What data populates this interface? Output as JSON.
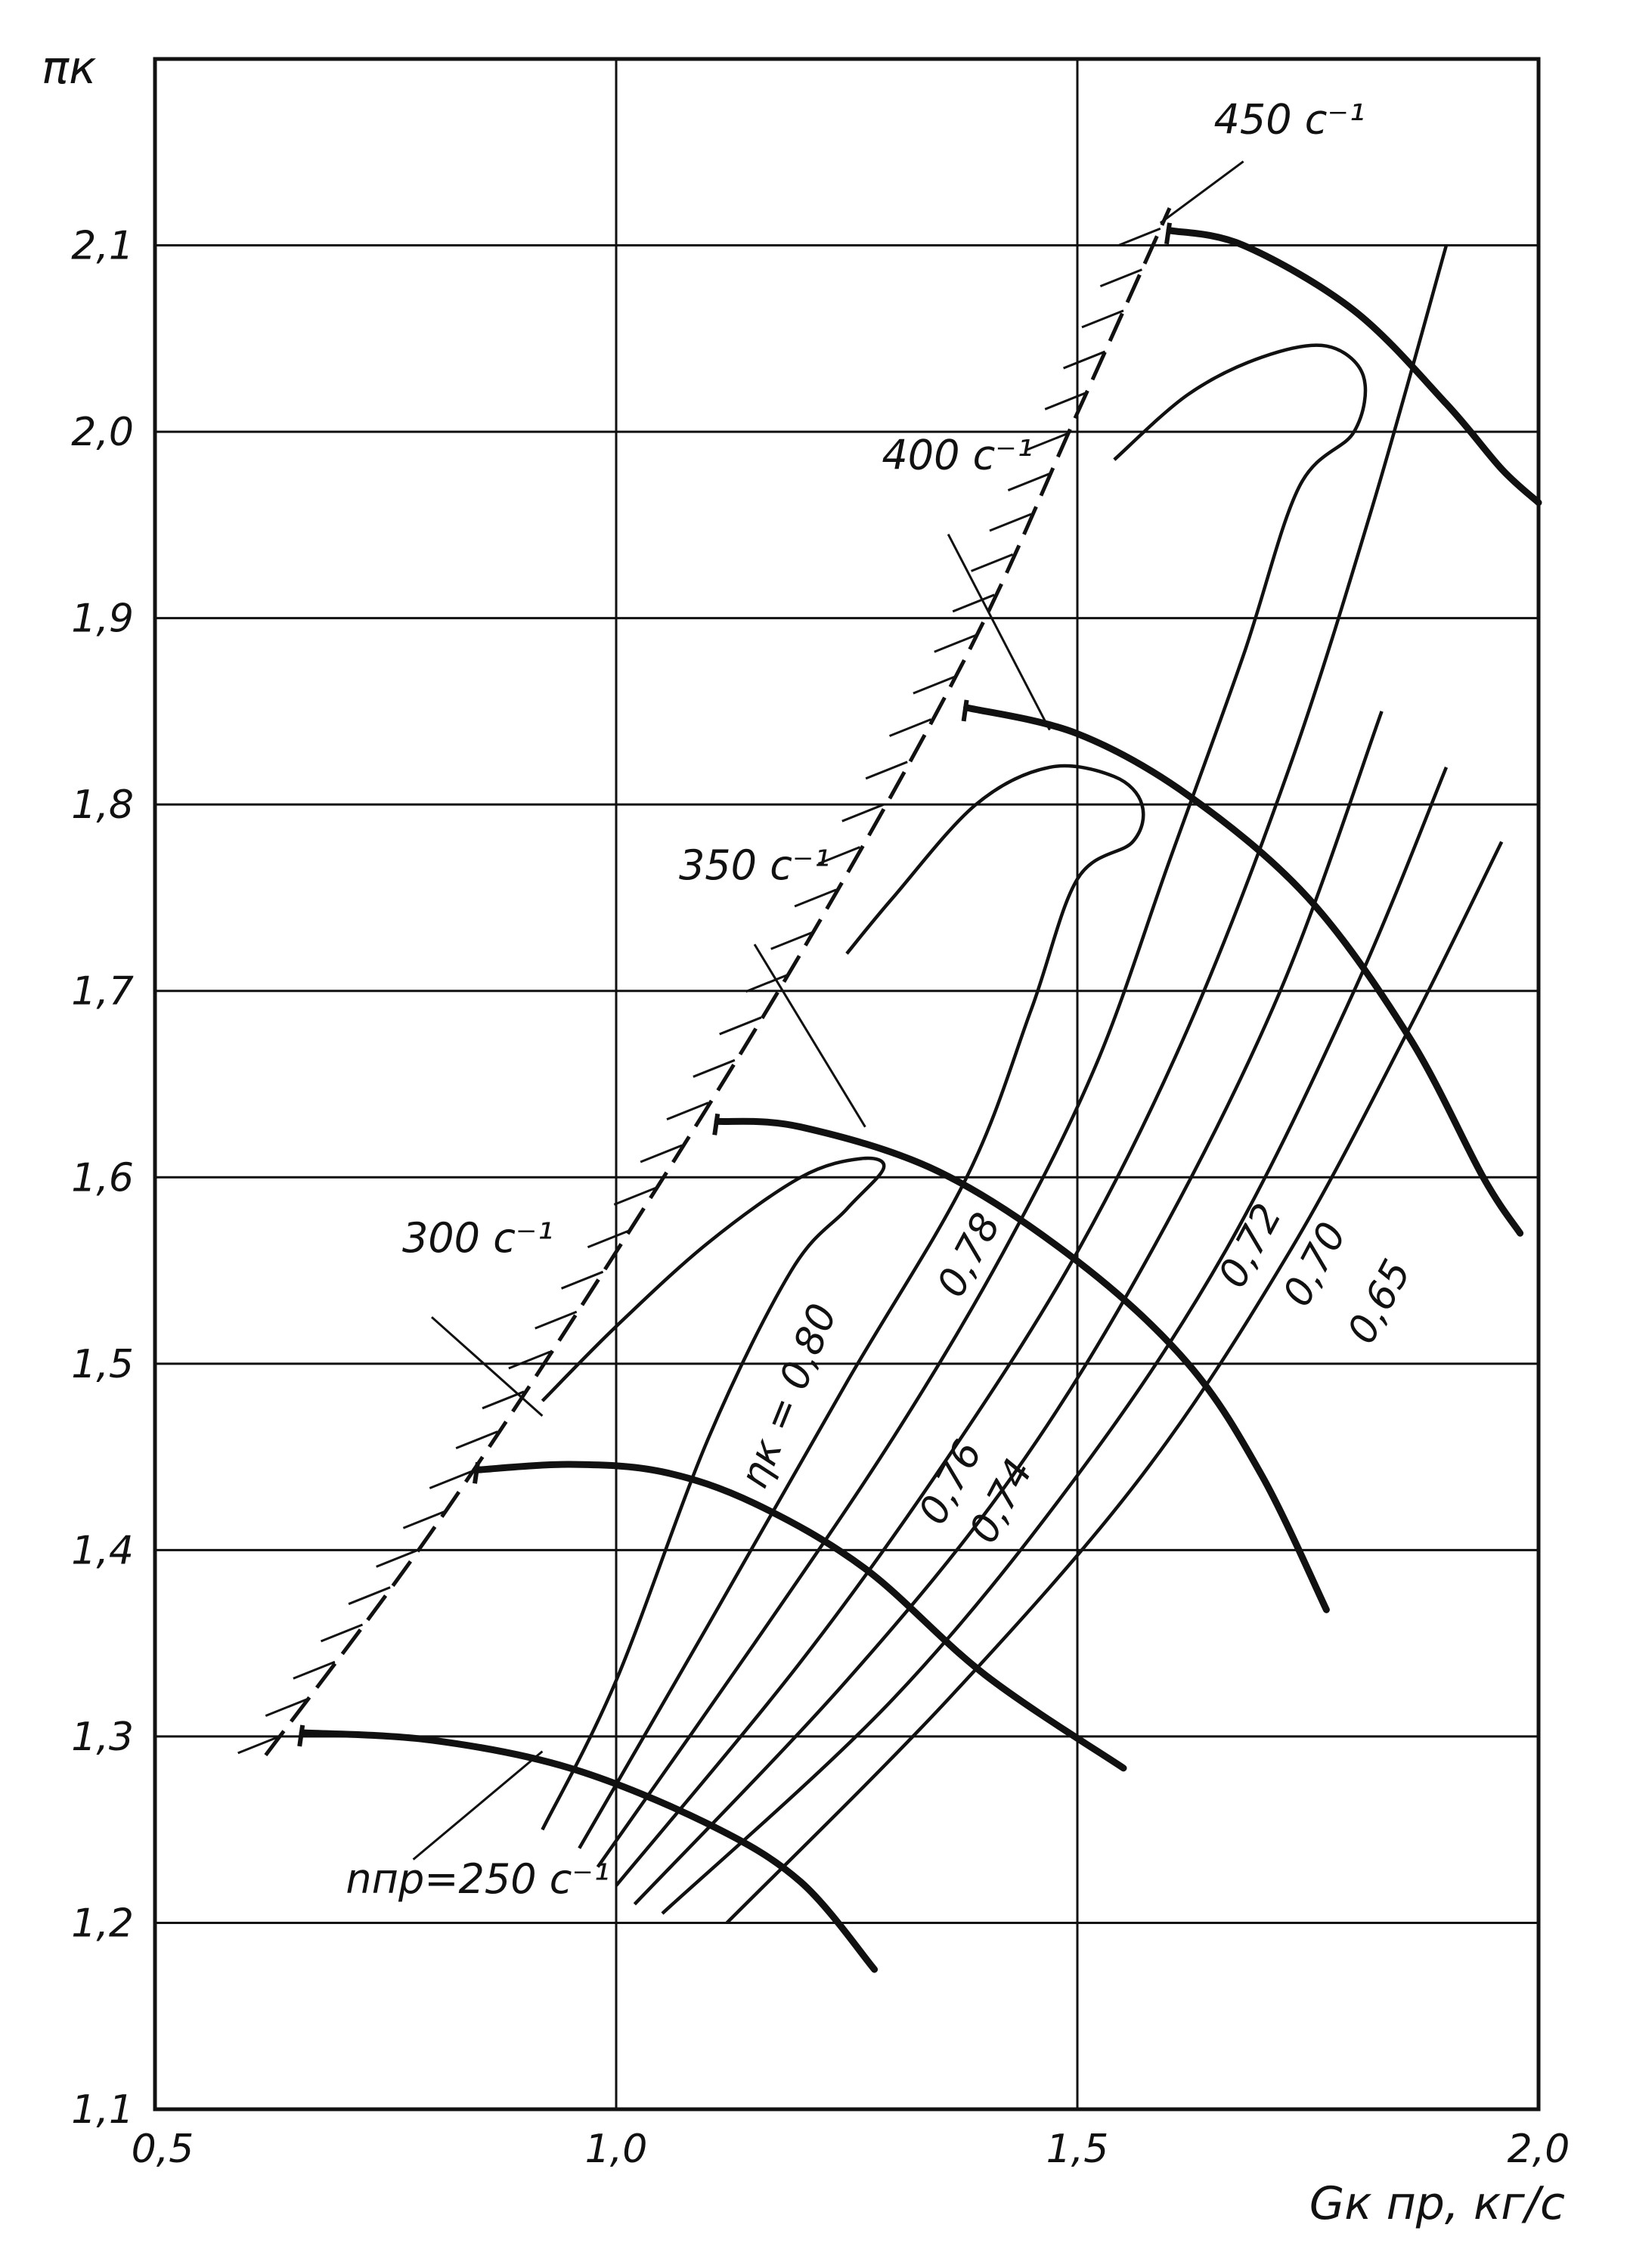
{
  "chart_data": {
    "type": "line",
    "title": "",
    "xlabel": "Gк пр, кг/с",
    "ylabel": "πк",
    "xlim": [
      0.5,
      2.0
    ],
    "ylim": [
      1.1,
      2.2
    ],
    "x_ticks": [
      {
        "value": 0.5,
        "label": "0,5"
      },
      {
        "value": 1.0,
        "label": "1,0"
      },
      {
        "value": 1.5,
        "label": "1,5"
      },
      {
        "value": 2.0,
        "label": "2,0"
      }
    ],
    "y_ticks": [
      {
        "value": 1.1,
        "label": "1,1"
      },
      {
        "value": 1.2,
        "label": "1,2"
      },
      {
        "value": 1.3,
        "label": "1,3"
      },
      {
        "value": 1.4,
        "label": "1,4"
      },
      {
        "value": 1.5,
        "label": "1,5"
      },
      {
        "value": 1.6,
        "label": "1,6"
      },
      {
        "value": 1.7,
        "label": "1,7"
      },
      {
        "value": 1.8,
        "label": "1,8"
      },
      {
        "value": 1.9,
        "label": "1,9"
      },
      {
        "value": 2.0,
        "label": "2,0"
      },
      {
        "value": 2.1,
        "label": "2,1"
      }
    ],
    "grid": true,
    "speed_lines": [
      {
        "label": "nпр=250 c⁻¹",
        "points": [
          [
            0.66,
            1.302
          ],
          [
            0.8,
            1.298
          ],
          [
            0.95,
            1.283
          ],
          [
            1.1,
            1.253
          ],
          [
            1.2,
            1.222
          ],
          [
            1.28,
            1.175
          ]
        ],
        "label_pos": [
          0.85,
          1.216
        ],
        "label_anchor": "middle",
        "leader": [
          [
            0.78,
            1.234
          ],
          [
            0.92,
            1.292
          ]
        ]
      },
      {
        "label": "300 c⁻¹",
        "points": [
          [
            0.85,
            1.443
          ],
          [
            0.95,
            1.446
          ],
          [
            1.05,
            1.442
          ],
          [
            1.15,
            1.425
          ],
          [
            1.27,
            1.39
          ],
          [
            1.4,
            1.333
          ],
          [
            1.55,
            1.283
          ]
        ],
        "label_pos": [
          0.85,
          1.56
        ],
        "label_anchor": "middle",
        "leader": [
          [
            0.8,
            1.525
          ],
          [
            0.92,
            1.472
          ]
        ]
      },
      {
        "label": "350 c⁻¹",
        "points": [
          [
            1.11,
            1.63
          ],
          [
            1.2,
            1.627
          ],
          [
            1.35,
            1.603
          ],
          [
            1.5,
            1.555
          ],
          [
            1.62,
            1.5
          ],
          [
            1.7,
            1.44
          ],
          [
            1.77,
            1.368
          ]
        ],
        "label_pos": [
          1.15,
          1.76
        ],
        "label_anchor": "middle",
        "leader": [
          [
            1.15,
            1.725
          ],
          [
            1.27,
            1.627
          ]
        ]
      },
      {
        "label": "400 c⁻¹",
        "points": [
          [
            1.38,
            1.852
          ],
          [
            1.5,
            1.838
          ],
          [
            1.62,
            1.805
          ],
          [
            1.75,
            1.75
          ],
          [
            1.86,
            1.675
          ],
          [
            1.94,
            1.6
          ],
          [
            1.98,
            1.57
          ]
        ],
        "label_pos": [
          1.37,
          1.98
        ],
        "label_anchor": "middle",
        "leader": [
          [
            1.36,
            1.945
          ],
          [
            1.47,
            1.84
          ]
        ]
      },
      {
        "label": "450 c⁻¹",
        "points": [
          [
            1.6,
            2.108
          ],
          [
            1.68,
            2.1
          ],
          [
            1.8,
            2.065
          ],
          [
            1.9,
            2.015
          ],
          [
            1.96,
            1.98
          ],
          [
            2.0,
            1.962
          ]
        ],
        "label_pos": [
          1.73,
          2.16
        ],
        "label_anchor": "middle",
        "leader": [
          [
            1.68,
            2.145
          ],
          [
            1.59,
            2.112
          ]
        ]
      }
    ],
    "surge_line": {
      "points": [
        [
          0.62,
          1.29
        ],
        [
          0.8,
          1.41
        ],
        [
          1.0,
          1.56
        ],
        [
          1.2,
          1.72
        ],
        [
          1.38,
          1.88
        ],
        [
          1.5,
          2.01
        ],
        [
          1.6,
          2.12
        ]
      ]
    },
    "efficiency_contours": [
      {
        "label": "ηк = 0,80",
        "points": [
          [
            0.92,
            1.25
          ],
          [
            1.0,
            1.33
          ],
          [
            1.1,
            1.46
          ],
          [
            1.19,
            1.55
          ],
          [
            1.25,
            1.583
          ],
          [
            1.29,
            1.605
          ],
          [
            1.265,
            1.61
          ],
          [
            1.2,
            1.6
          ],
          [
            1.1,
            1.565
          ],
          [
            1.0,
            1.52
          ],
          [
            0.92,
            1.48
          ]
        ],
        "label_pos": [
          1.2,
          1.48
        ],
        "angle": -68
      },
      {
        "label": "0,78",
        "points": [
          [
            0.96,
            1.24
          ],
          [
            1.1,
            1.36
          ],
          [
            1.25,
            1.49
          ],
          [
            1.38,
            1.6
          ],
          [
            1.45,
            1.69
          ],
          [
            1.5,
            1.76
          ],
          [
            1.56,
            1.78
          ],
          [
            1.57,
            1.8
          ],
          [
            1.54,
            1.815
          ],
          [
            1.47,
            1.82
          ],
          [
            1.39,
            1.8
          ],
          [
            1.3,
            1.75
          ],
          [
            1.25,
            1.72
          ]
        ],
        "label_pos": [
          1.395,
          1.555
        ],
        "angle": -62
      },
      {
        "label": "0,76",
        "points": [
          [
            0.98,
            1.23
          ],
          [
            1.15,
            1.35
          ],
          [
            1.3,
            1.46
          ],
          [
            1.42,
            1.56
          ],
          [
            1.52,
            1.66
          ],
          [
            1.6,
            1.77
          ],
          [
            1.68,
            1.88
          ],
          [
            1.74,
            1.97
          ],
          [
            1.8,
            2.0
          ],
          [
            1.81,
            2.03
          ],
          [
            1.77,
            2.046
          ],
          [
            1.7,
            2.04
          ],
          [
            1.62,
            2.02
          ],
          [
            1.54,
            1.985
          ]
        ],
        "label_pos": [
          1.375,
          1.433
        ],
        "angle": -62
      },
      {
        "label": "0,74",
        "points": [
          [
            1.0,
            1.22
          ],
          [
            1.2,
            1.34
          ],
          [
            1.36,
            1.45
          ],
          [
            1.5,
            1.56
          ],
          [
            1.62,
            1.68
          ],
          [
            1.73,
            1.82
          ],
          [
            1.82,
            1.96
          ],
          [
            1.9,
            2.1
          ]
        ],
        "label_pos": [
          1.43,
          1.423
        ],
        "angle": -62
      },
      {
        "label": "0,72",
        "points": [
          [
            1.02,
            1.21
          ],
          [
            1.25,
            1.33
          ],
          [
            1.43,
            1.44
          ],
          [
            1.58,
            1.56
          ],
          [
            1.72,
            1.7
          ],
          [
            1.83,
            1.85
          ]
        ],
        "label_pos": [
          1.7,
          1.56
        ],
        "angle": -62
      },
      {
        "label": "0,70",
        "points": [
          [
            1.05,
            1.205
          ],
          [
            1.3,
            1.32
          ],
          [
            1.5,
            1.44
          ],
          [
            1.66,
            1.56
          ],
          [
            1.8,
            1.7
          ],
          [
            1.9,
            1.82
          ]
        ],
        "label_pos": [
          1.77,
          1.55
        ],
        "angle": -62
      },
      {
        "label": "0,65",
        "points": [
          [
            1.12,
            1.2
          ],
          [
            1.36,
            1.32
          ],
          [
            1.57,
            1.44
          ],
          [
            1.73,
            1.56
          ],
          [
            1.86,
            1.68
          ],
          [
            1.96,
            1.78
          ]
        ],
        "label_pos": [
          1.84,
          1.53
        ],
        "angle": -62
      }
    ]
  }
}
